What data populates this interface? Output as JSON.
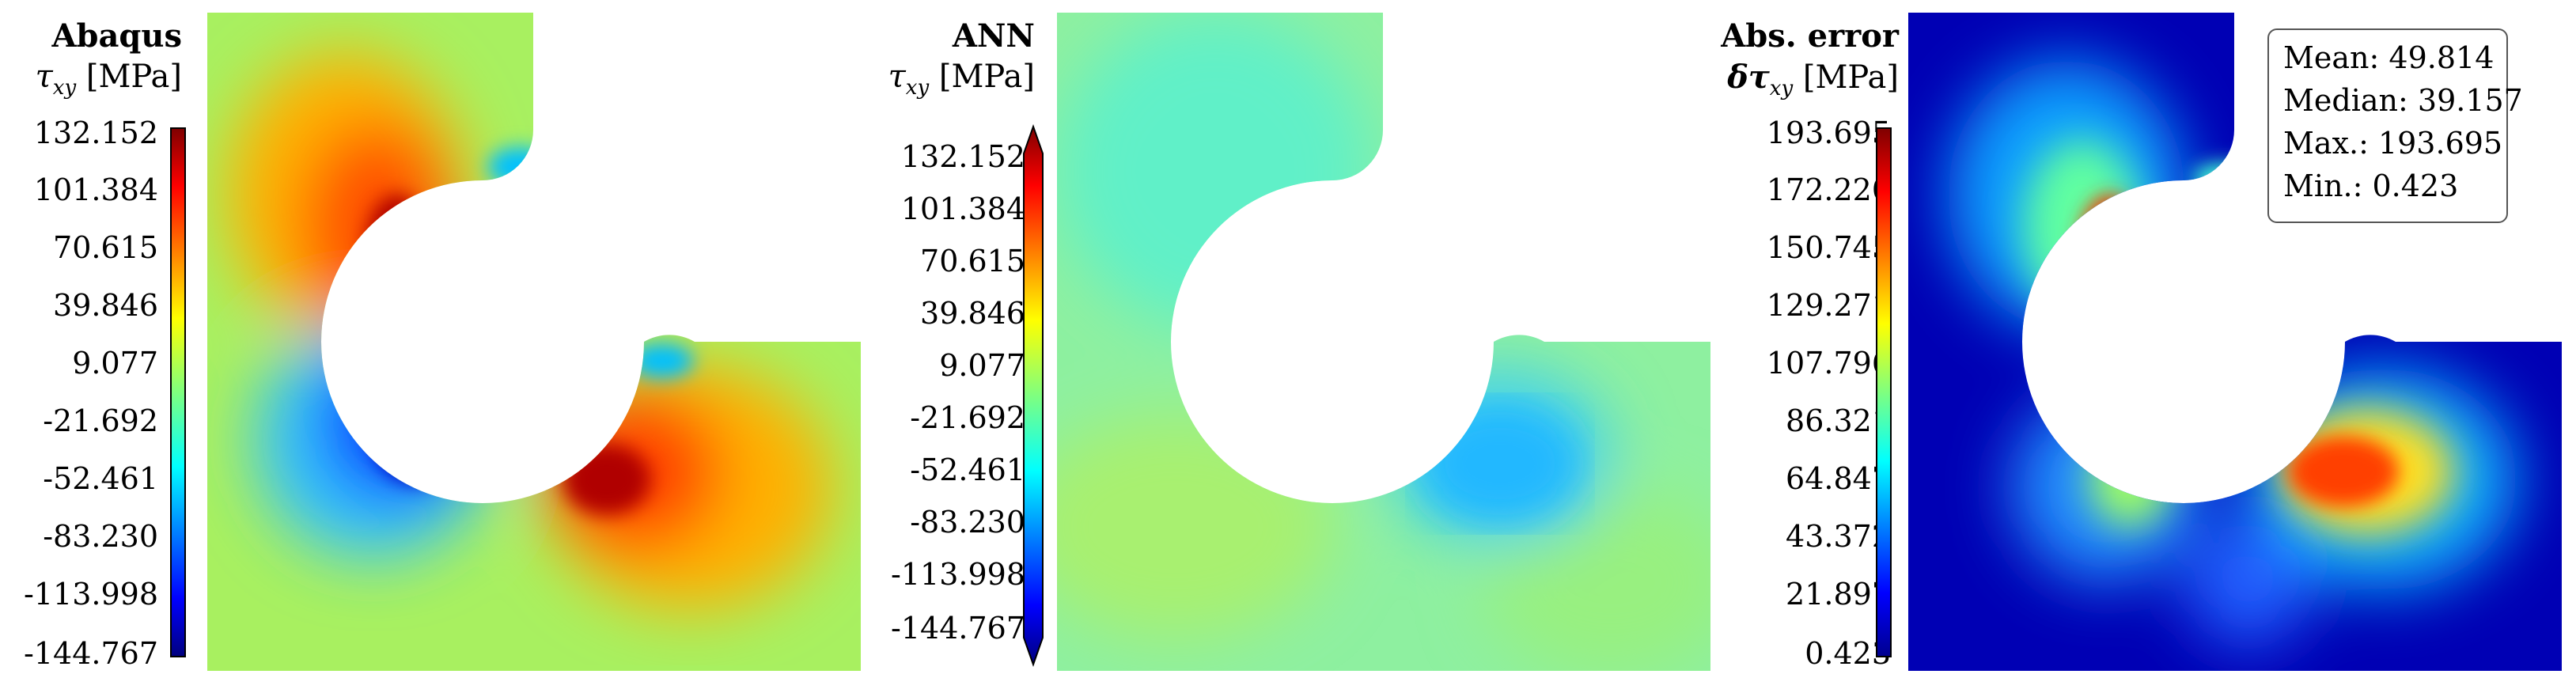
{
  "panels": [
    {
      "title": "Abaqus",
      "quantity": "τxy [MPa]",
      "symbol": "τ",
      "subscript": "xy",
      "unit": "[MPa]",
      "colorbar_ticks": [
        "132.152",
        "101.384",
        "70.615",
        "39.846",
        "9.077",
        "-21.692",
        "-52.461",
        "-83.230",
        "-113.998",
        "-144.767"
      ]
    },
    {
      "title": "ANN",
      "quantity": "τxy [MPa]",
      "symbol": "τ",
      "subscript": "xy",
      "unit": "[MPa]",
      "colorbar_ticks": [
        "132.152",
        "101.384",
        "70.615",
        "39.846",
        "9.077",
        "-21.692",
        "-52.461",
        "-83.230",
        "-113.998",
        "-144.767"
      ]
    },
    {
      "title": "Abs. error",
      "quantity": "δτxy [MPa]",
      "symbol": "δτ",
      "subscript": "xy",
      "unit": "[MPa]",
      "colorbar_ticks": [
        "193.695",
        "172.220",
        "150.745",
        "129.271",
        "107.796",
        "86.321",
        "64.847",
        "43.372",
        "21.897",
        "0.423"
      ],
      "stats": {
        "mean": "Mean: 49.814",
        "median": "Median: 39.157",
        "max": "Max.: 193.695",
        "min": "Min.: 0.423"
      }
    }
  ],
  "colormap": "jet",
  "colors": {
    "background_green": "#a8f060",
    "ann_background": "#8ef0a0",
    "error_background": "#0000b4"
  }
}
